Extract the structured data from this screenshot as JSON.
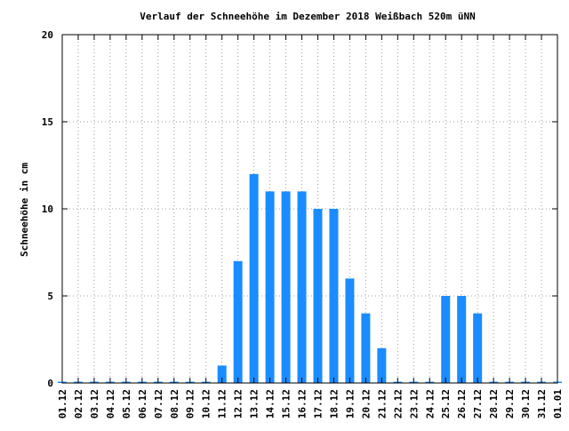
{
  "chart_data": {
    "type": "bar",
    "title": "Verlauf der Schneehöhe im Dezember 2018 Weißbach 520m üNN",
    "xlabel": "",
    "ylabel": "Schneehöhe in cm",
    "ylim": [
      0,
      20
    ],
    "yticks": [
      "0",
      "5",
      "10",
      "15",
      "20"
    ],
    "grid": true,
    "bar_color": "#1a8cff",
    "categories": [
      "01.12",
      "02.12",
      "03.12",
      "04.12",
      "05.12",
      "06.12",
      "07.12",
      "08.12",
      "09.12",
      "10.12",
      "11.12",
      "12.12",
      "13.12",
      "14.12",
      "15.12",
      "16.12",
      "17.12",
      "18.12",
      "19.12",
      "20.12",
      "21.12",
      "22.12",
      "23.12",
      "24.12",
      "25.12",
      "26.12",
      "27.12",
      "28.12",
      "29.12",
      "30.12",
      "31.12",
      "01.01"
    ],
    "values": [
      0,
      0,
      0,
      0,
      0,
      0,
      0,
      0,
      0,
      0,
      1,
      7,
      12,
      11,
      11,
      11,
      10,
      10,
      6,
      4,
      2,
      0,
      0,
      0,
      5,
      5,
      4,
      0,
      0,
      0,
      0,
      0
    ]
  }
}
